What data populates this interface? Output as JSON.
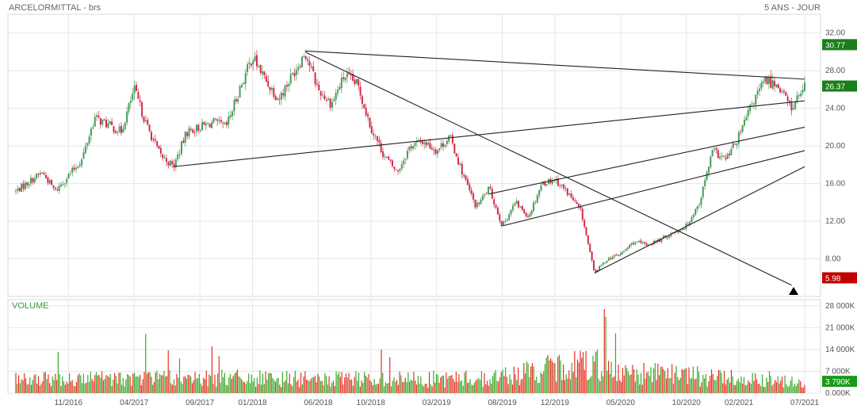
{
  "header": {
    "title": "ARCELORMITTAL - brs",
    "period": "5 ANS - JOUR"
  },
  "volume_panel": {
    "title": "VOLUME"
  },
  "badges": {
    "high": {
      "text": "30.77",
      "value": 30.77,
      "color": "#1a7f1a"
    },
    "last": {
      "text": "26.37",
      "value": 26.37,
      "color": "#1a7f1a"
    },
    "low": {
      "text": "5.98",
      "value": 5.98,
      "color": "#c00000"
    },
    "volume": {
      "text": "3 790K",
      "value": 3790,
      "color": "#1a9a1a"
    }
  },
  "colors": {
    "up": "#4a9a5a",
    "down": "#d22a4a",
    "vol_up": "#3aaa2a",
    "vol_down": "#e63020",
    "grid": "#e6e6e6",
    "trendline": "#222222"
  },
  "chart_data": [
    {
      "type": "candlestick",
      "title": "ARCELORMITTAL - brs",
      "ylim": [
        4.0,
        34.0
      ],
      "y_ticks": [
        "32.00",
        "28.00",
        "24.00",
        "20.00",
        "16.00",
        "12.00",
        "8.00"
      ],
      "y_tick_values": [
        32,
        28,
        24,
        20,
        16,
        12,
        8
      ],
      "x_ticks": [
        "11/2016",
        "04/2017",
        "09/2017",
        "01/2018",
        "06/2018",
        "10/2018",
        "03/2019",
        "08/2019",
        "12/2019",
        "05/2020",
        "10/2020",
        "02/2021",
        "07/2021"
      ],
      "x_range": [
        "07/2016",
        "07/2021"
      ],
      "grid": true,
      "price_path": [
        [
          "07/2016",
          15.2
        ],
        [
          "09/2016",
          17.2
        ],
        [
          "10/2016",
          15.2
        ],
        [
          "12/2016",
          18.5
        ],
        [
          "01/2017",
          23.0
        ],
        [
          "03/2017",
          21.5
        ],
        [
          "04/2017",
          26.0
        ],
        [
          "05/2017",
          22.0
        ],
        [
          "06/2017",
          19.0
        ],
        [
          "07/2017",
          17.8
        ],
        [
          "08/2017",
          21.5
        ],
        [
          "10/2017",
          22.5
        ],
        [
          "11/2017",
          22.0
        ],
        [
          "12/2017",
          26.0
        ],
        [
          "01/2018",
          29.5
        ],
        [
          "02/2018",
          27.0
        ],
        [
          "03/2018",
          25.0
        ],
        [
          "05/2018",
          30.0
        ],
        [
          "06/2018",
          26.0
        ],
        [
          "07/2018",
          24.5
        ],
        [
          "08/2018",
          27.5
        ],
        [
          "09/2018",
          26.5
        ],
        [
          "10/2018",
          22.0
        ],
        [
          "11/2018",
          19.0
        ],
        [
          "12/2018",
          17.2
        ],
        [
          "01/2019",
          20.0
        ],
        [
          "02/2019",
          20.5
        ],
        [
          "03/2019",
          19.5
        ],
        [
          "04/2019",
          21.0
        ],
        [
          "05/2019",
          17.0
        ],
        [
          "06/2019",
          13.5
        ],
        [
          "07/2019",
          15.5
        ],
        [
          "08/2019",
          11.5
        ],
        [
          "09/2019",
          14.0
        ],
        [
          "10/2019",
          12.5
        ],
        [
          "11/2019",
          16.0
        ],
        [
          "12/2019",
          16.5
        ],
        [
          "01/2020",
          15.0
        ],
        [
          "02/2020",
          13.0
        ],
        [
          "03/2020",
          6.5
        ],
        [
          "04/2020",
          8.0
        ],
        [
          "05/2020",
          8.5
        ],
        [
          "06/2020",
          9.8
        ],
        [
          "07/2020",
          9.5
        ],
        [
          "08/2020",
          10.0
        ],
        [
          "09/2020",
          10.8
        ],
        [
          "10/2020",
          11.5
        ],
        [
          "11/2020",
          14.0
        ],
        [
          "12/2020",
          19.5
        ],
        [
          "01/2021",
          18.5
        ],
        [
          "02/2021",
          21.0
        ],
        [
          "03/2021",
          24.5
        ],
        [
          "04/2021",
          27.0
        ],
        [
          "05/2021",
          26.5
        ],
        [
          "06/2021",
          24.0
        ],
        [
          "07/2021",
          26.37
        ]
      ],
      "trendlines": [
        {
          "from": [
            "05/2018",
            30.1
          ],
          "to": [
            "07/2021",
            27.1
          ]
        },
        {
          "from": [
            "07/2017",
            17.8
          ],
          "to": [
            "07/2021",
            24.8
          ]
        },
        {
          "from": [
            "05/2018",
            30.0
          ],
          "to": [
            "06/2021",
            5.2
          ]
        },
        {
          "from": [
            "07/2019",
            14.9
          ],
          "to": [
            "07/2021",
            22.0
          ]
        },
        {
          "from": [
            "08/2019",
            11.5
          ],
          "to": [
            "07/2021",
            19.5
          ]
        },
        {
          "from": [
            "03/2020",
            6.5
          ],
          "to": [
            "07/2021",
            17.8
          ]
        }
      ]
    },
    {
      "type": "bar",
      "title": "VOLUME",
      "ylim": [
        0,
        30000
      ],
      "y_ticks": [
        "28 000K",
        "21 000K",
        "14 000K",
        "7 000K",
        "0.000K"
      ],
      "y_tick_values": [
        28000,
        21000,
        14000,
        7000,
        0
      ],
      "last_value": 3790,
      "volume_path": [
        [
          "07/2016",
          4500
        ],
        [
          "07/2017",
          5500
        ],
        [
          "07/2018",
          4800
        ],
        [
          "07/2019",
          5200
        ],
        [
          "03/2020",
          11000
        ],
        [
          "06/2020",
          7000
        ],
        [
          "07/2021",
          4500
        ]
      ],
      "spikes": [
        [
          "10/2016",
          16000
        ],
        [
          "12/2016",
          17000
        ],
        [
          "05/2017",
          25000
        ],
        [
          "07/2017",
          15000
        ],
        [
          "10/2017",
          15500
        ],
        [
          "02/2018",
          16500
        ],
        [
          "11/2018",
          14500
        ],
        [
          "04/2020",
          28000
        ],
        [
          "05/2020",
          20000
        ],
        [
          "03/2020",
          16000
        ]
      ]
    }
  ]
}
